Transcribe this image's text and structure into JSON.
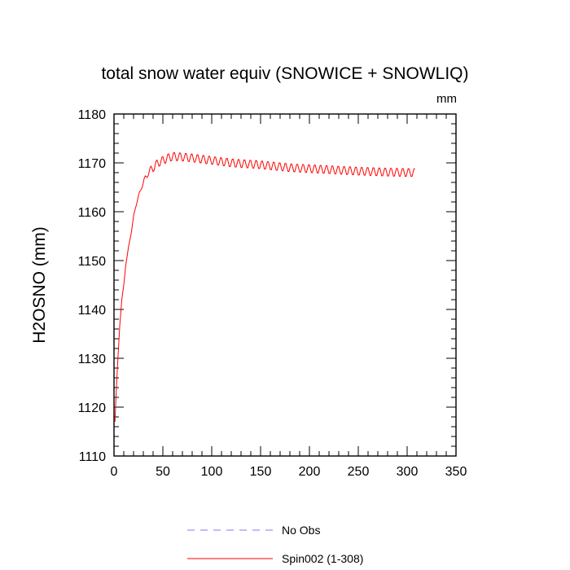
{
  "chart_data": {
    "type": "line",
    "title": "total snow water equiv (SNOWICE + SNOWLIQ)",
    "units": "mm",
    "xlabel": "",
    "ylabel": "H2OSNO  (mm)",
    "xlim": [
      0,
      350
    ],
    "ylim": [
      1110,
      1180
    ],
    "xticks": [
      0,
      50,
      100,
      150,
      200,
      250,
      300,
      350
    ],
    "yticks": [
      1110,
      1120,
      1130,
      1140,
      1150,
      1160,
      1170,
      1180
    ],
    "grid": false,
    "legend_position": "bottom",
    "series": [
      {
        "name": "No Obs",
        "color": "#7b7bff",
        "dash": "dashed",
        "x": [],
        "y": []
      },
      {
        "name": "Spin002 (1-308)",
        "color": "#ff0000",
        "dash": "solid",
        "x_start": 1,
        "x_end": 308,
        "anchors_x": [
          1,
          2,
          4,
          6,
          8,
          10,
          12,
          15,
          18,
          20,
          22,
          25,
          28,
          30,
          35,
          40,
          45,
          50,
          55,
          60,
          70,
          80,
          100,
          120,
          150,
          180,
          200,
          220,
          250,
          280,
          308
        ],
        "anchors_y": [
          1117,
          1122,
          1130,
          1137,
          1142,
          1145,
          1149,
          1153,
          1156,
          1159,
          1161,
          1163,
          1165,
          1166,
          1168,
          1169,
          1170,
          1170.5,
          1171,
          1171.3,
          1171.2,
          1171,
          1170.5,
          1170,
          1169.6,
          1169,
          1168.8,
          1168.6,
          1168.3,
          1168.1,
          1168
        ],
        "seasonal_amplitude": 0.9,
        "seasonal_period": 6
      }
    ]
  }
}
